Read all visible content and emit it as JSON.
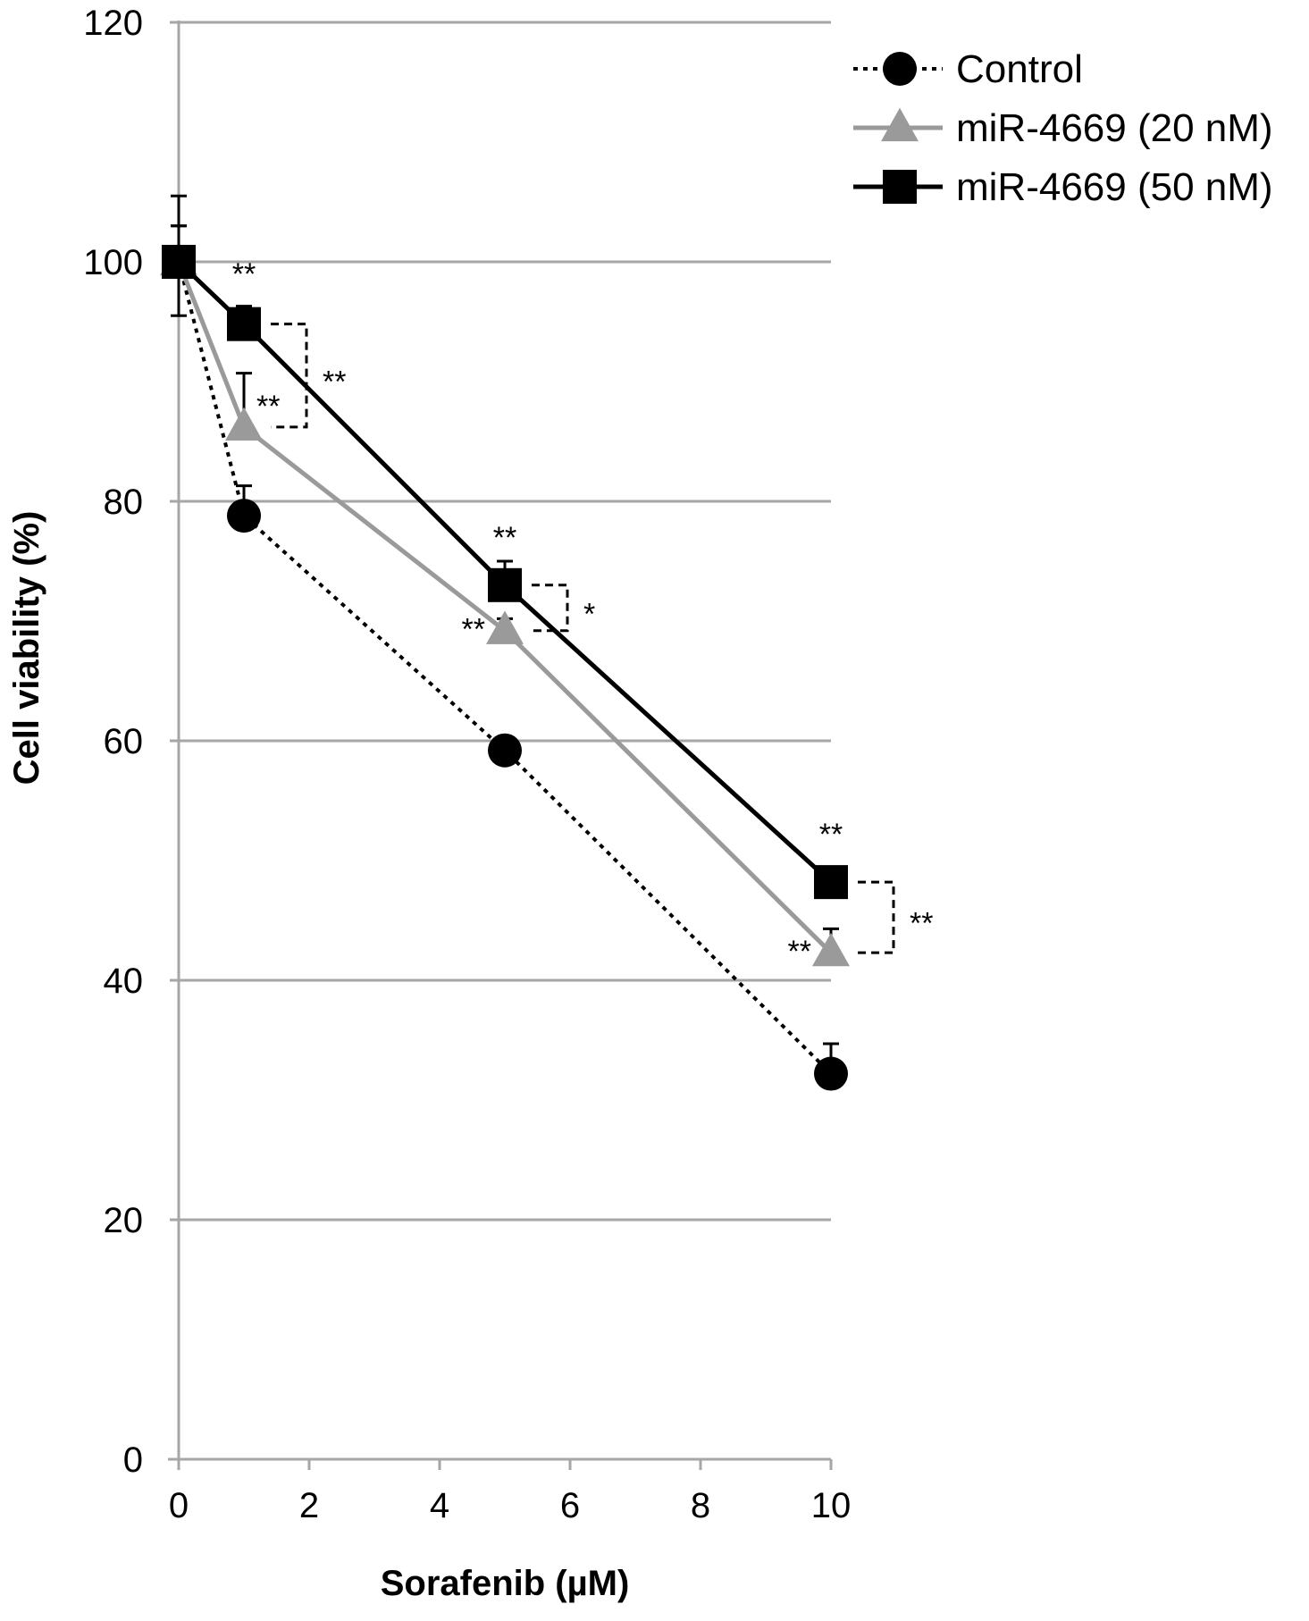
{
  "chart_data": {
    "type": "line",
    "title": "",
    "xlabel": "Sorafenib (µM)",
    "ylabel": "Cell viability (%)",
    "xlim": [
      0,
      10
    ],
    "ylim": [
      0,
      120
    ],
    "xticks": [
      0,
      2,
      4,
      6,
      8,
      10
    ],
    "yticks": [
      0,
      20,
      40,
      60,
      80,
      100,
      120
    ],
    "grid": "horizontal",
    "legend_position": "top-right",
    "x": [
      0,
      1,
      5,
      10
    ],
    "series": [
      {
        "name": "Control",
        "values": [
          100,
          78.8,
          59.2,
          32.2
        ],
        "errors": [
          3,
          2.5,
          1,
          2.5
        ],
        "color": "#000000",
        "line": "dotted",
        "marker": "circle"
      },
      {
        "name": "miR-4669 (20 nM)",
        "values": [
          100,
          86.2,
          69.2,
          42.3
        ],
        "errors": [
          3,
          4.5,
          1,
          2
        ],
        "color": "#9a9a9a",
        "line": "solid",
        "marker": "triangle"
      },
      {
        "name": "miR-4669 (50 nM)",
        "values": [
          100,
          94.8,
          73,
          48.2
        ],
        "errors": [
          5.5,
          1.5,
          2,
          1
        ],
        "color": "#000000",
        "line": "solid",
        "marker": "square"
      }
    ],
    "annotations": [
      {
        "label": "**",
        "x": 1,
        "y": 95,
        "placement": "above",
        "target": "miR-4669 (50 nM)"
      },
      {
        "label": "**",
        "x": 1,
        "y": 86.2,
        "placement": "right",
        "target": "miR-4669 (20 nM)"
      },
      {
        "label": "**",
        "x": 5,
        "y": 73,
        "placement": "above",
        "target": "miR-4669 (50 nM)"
      },
      {
        "label": "**",
        "x": 5,
        "y": 69.2,
        "placement": "left",
        "target": "miR-4669 (20 nM)"
      },
      {
        "label": "**",
        "x": 10,
        "y": 48.2,
        "placement": "above",
        "target": "miR-4669 (50 nM)"
      },
      {
        "label": "**",
        "x": 10,
        "y": 42.3,
        "placement": "left",
        "target": "miR-4669 (20 nM)"
      }
    ],
    "brackets": [
      {
        "label": "**",
        "x": 1,
        "y_top": 94.8,
        "y_bottom": 86.2
      },
      {
        "label": "*",
        "x": 5,
        "y_top": 73,
        "y_bottom": 69.2
      },
      {
        "label": "**",
        "x": 10,
        "y_top": 48.2,
        "y_bottom": 42.3
      }
    ]
  }
}
